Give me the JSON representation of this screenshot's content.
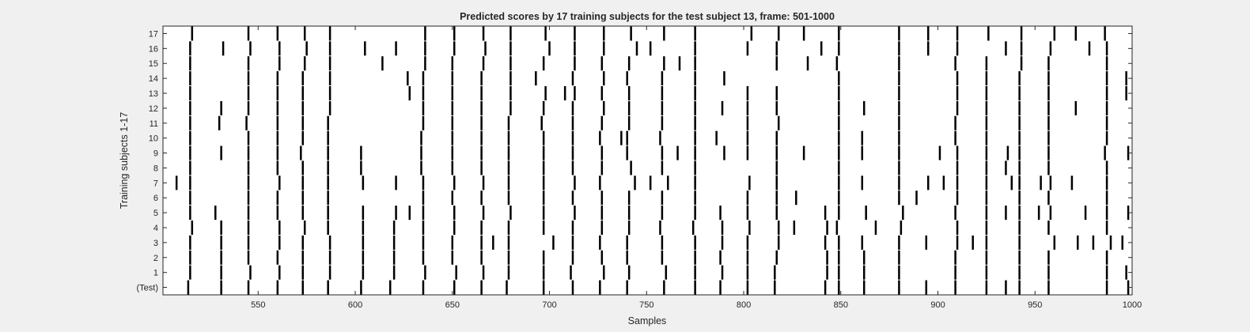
{
  "chart_data": {
    "type": "raster",
    "title": "Predicted scores by 17 training subjects for the test subject 13, frame: 501-1000",
    "xlabel": "Samples",
    "ylabel": "Training subjects 1-17",
    "xlim": [
      501,
      1000
    ],
    "xticks": [
      550,
      600,
      650,
      700,
      750,
      800,
      850,
      900,
      950,
      1000
    ],
    "yticklabels": [
      "(Test)",
      "1",
      "2",
      "3",
      "4",
      "5",
      "6",
      "7",
      "8",
      "9",
      "10",
      "11",
      "12",
      "13",
      "14",
      "15",
      "16",
      "17"
    ],
    "grid": false,
    "colors": {
      "marks": "#000000",
      "plot_background": "#ffffff",
      "figure_background": "#f0f0f0",
      "axes": "#262626"
    },
    "series": [
      {
        "row": "(Test)",
        "events": [
          514,
          531,
          545,
          560,
          573,
          586,
          603,
          618,
          635,
          651,
          665,
          678,
          697,
          712,
          726,
          740,
          759,
          775,
          788,
          802,
          816,
          842,
          849,
          862,
          880,
          894,
          909,
          925,
          935,
          942,
          957,
          987,
          998
        ]
      },
      {
        "row": "1",
        "events": [
          515,
          531,
          546,
          561,
          573,
          587,
          604,
          620,
          636,
          652,
          666,
          679,
          697,
          711,
          728,
          741,
          760,
          775,
          789,
          802,
          816,
          843,
          849,
          862,
          880,
          909,
          925,
          942,
          957,
          987,
          997
        ]
      },
      {
        "row": "2",
        "events": [
          515,
          531,
          545,
          560,
          573,
          587,
          604,
          620,
          635,
          650,
          665,
          679,
          697,
          712,
          727,
          740,
          758,
          775,
          788,
          802,
          817,
          843,
          849,
          862,
          880,
          909,
          925,
          942,
          957,
          987
        ]
      },
      {
        "row": "3",
        "events": [
          515,
          531,
          545,
          561,
          573,
          587,
          604,
          620,
          635,
          650,
          665,
          671,
          679,
          702,
          712,
          726,
          740,
          758,
          775,
          789,
          802,
          818,
          842,
          849,
          861,
          880,
          894,
          910,
          918,
          925,
          942,
          960,
          972,
          980,
          989,
          995
        ]
      },
      {
        "row": "4",
        "events": [
          516,
          531,
          545,
          561,
          574,
          586,
          604,
          620,
          635,
          651,
          665,
          679,
          697,
          712,
          727,
          741,
          757,
          774,
          789,
          803,
          818,
          826,
          843,
          848,
          868,
          881,
          910,
          925,
          942,
          957,
          987
        ]
      },
      {
        "row": "5",
        "events": [
          515,
          528,
          545,
          560,
          573,
          586,
          604,
          621,
          628,
          635,
          651,
          666,
          680,
          697,
          713,
          727,
          741,
          758,
          775,
          788,
          802,
          817,
          842,
          849,
          863,
          882,
          909,
          925,
          935,
          942,
          952,
          958,
          976,
          987,
          998
        ]
      },
      {
        "row": "6",
        "events": [
          515,
          545,
          560,
          573,
          586,
          635,
          650,
          665,
          679,
          697,
          712,
          727,
          741,
          758,
          775,
          802,
          817,
          827,
          849,
          880,
          889,
          910,
          925,
          942,
          957,
          987
        ]
      },
      {
        "row": "7",
        "events": [
          508,
          515,
          545,
          561,
          573,
          586,
          604,
          621,
          635,
          651,
          666,
          679,
          697,
          713,
          726,
          744,
          752,
          761,
          775,
          803,
          817,
          849,
          861,
          880,
          895,
          903,
          910,
          925,
          938,
          942,
          953,
          958,
          969,
          987
        ]
      },
      {
        "row": "8",
        "events": [
          515,
          545,
          560,
          573,
          586,
          603,
          634,
          650,
          665,
          679,
          697,
          712,
          727,
          742,
          758,
          775,
          817,
          849,
          880,
          910,
          925,
          935,
          942,
          957,
          987
        ]
      },
      {
        "row": "9",
        "events": [
          515,
          531,
          545,
          560,
          572,
          586,
          603,
          634,
          650,
          665,
          679,
          697,
          712,
          727,
          740,
          758,
          766,
          775,
          790,
          802,
          817,
          831,
          849,
          861,
          880,
          901,
          910,
          925,
          936,
          942,
          957,
          986,
          998
        ]
      },
      {
        "row": "10",
        "events": [
          515,
          545,
          560,
          573,
          586,
          634,
          650,
          665,
          679,
          697,
          712,
          726,
          737,
          740,
          757,
          775,
          786,
          802,
          817,
          849,
          861,
          880,
          909,
          925,
          942,
          957,
          987
        ]
      },
      {
        "row": "11",
        "events": [
          515,
          530,
          544,
          560,
          573,
          586,
          635,
          650,
          665,
          679,
          696,
          712,
          727,
          741,
          758,
          775,
          802,
          818,
          849,
          880,
          909,
          925,
          942,
          957,
          987
        ]
      },
      {
        "row": "12",
        "events": [
          515,
          531,
          545,
          560,
          573,
          587,
          635,
          650,
          665,
          680,
          697,
          712,
          728,
          741,
          758,
          775,
          789,
          802,
          817,
          849,
          862,
          880,
          910,
          925,
          942,
          957,
          971,
          987
        ]
      },
      {
        "row": "13",
        "events": [
          515,
          545,
          560,
          573,
          587,
          628,
          635,
          650,
          665,
          680,
          698,
          708,
          713,
          727,
          741,
          758,
          775,
          802,
          817,
          849,
          880,
          910,
          925,
          942,
          957,
          987,
          997
        ]
      },
      {
        "row": "14",
        "events": [
          515,
          545,
          560,
          573,
          587,
          627,
          635,
          650,
          665,
          680,
          693,
          712,
          728,
          740,
          758,
          775,
          790,
          849,
          880,
          910,
          925,
          942,
          957,
          987,
          997
        ]
      },
      {
        "row": "15",
        "events": [
          515,
          545,
          561,
          574,
          587,
          614,
          636,
          650,
          666,
          680,
          697,
          713,
          727,
          741,
          759,
          767,
          775,
          817,
          833,
          848,
          880,
          909,
          925,
          943,
          957,
          987
        ]
      },
      {
        "row": "16",
        "events": [
          515,
          532,
          546,
          561,
          575,
          587,
          605,
          621,
          636,
          651,
          667,
          680,
          700,
          713,
          728,
          745,
          752,
          775,
          802,
          817,
          840,
          849,
          880,
          895,
          910,
          935,
          943,
          958,
          978,
          987
        ]
      },
      {
        "row": "17",
        "events": [
          516,
          545,
          560,
          574,
          587,
          636,
          651,
          666,
          680,
          698,
          713,
          728,
          742,
          759,
          775,
          804,
          818,
          831,
          849,
          880,
          895,
          910,
          926,
          943,
          960,
          971,
          986
        ]
      }
    ]
  }
}
